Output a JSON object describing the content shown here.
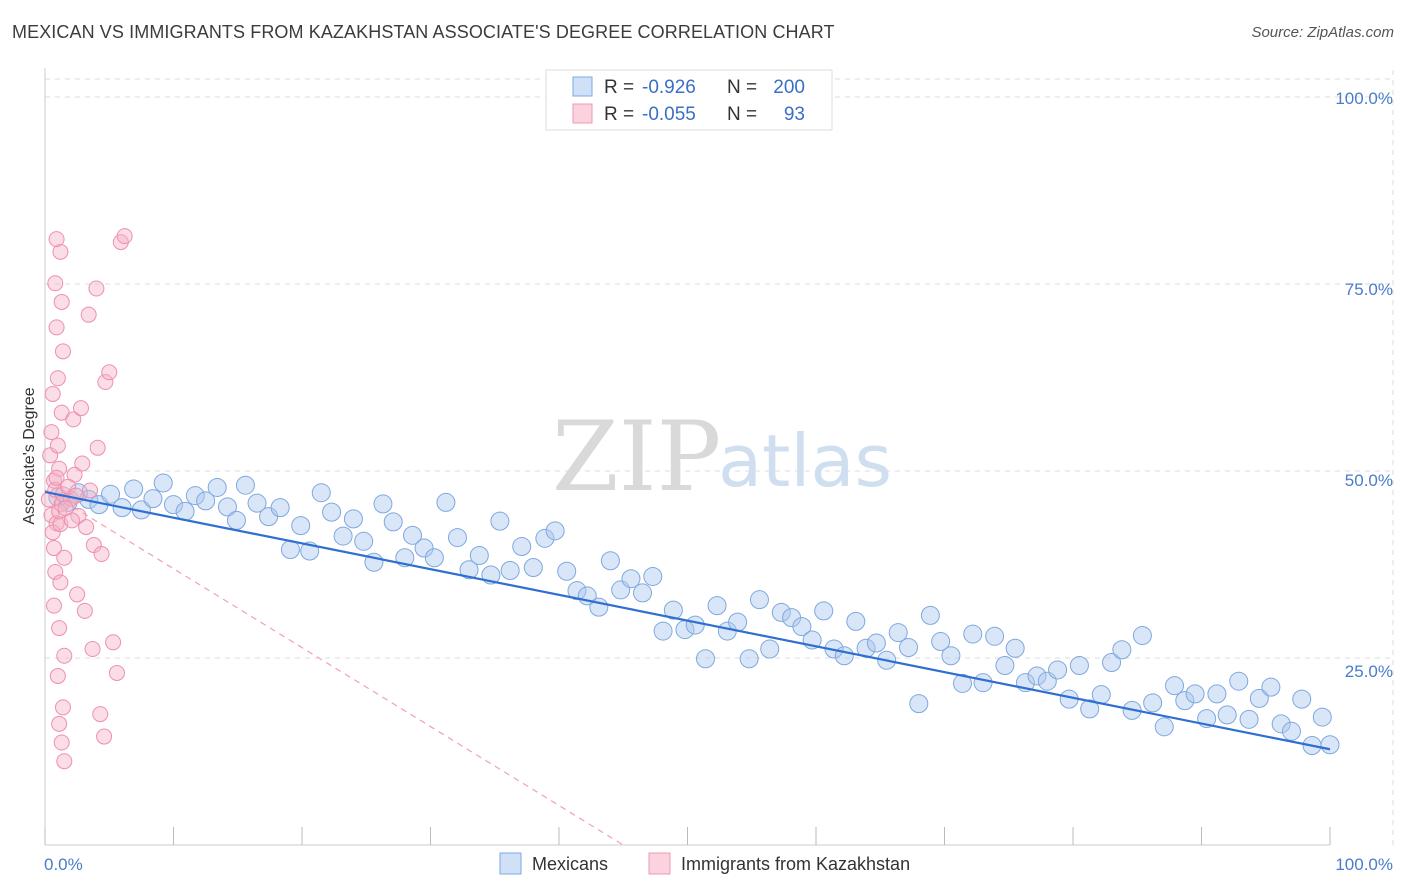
{
  "header": {
    "title": "MEXICAN VS IMMIGRANTS FROM KAZAKHSTAN ASSOCIATE'S DEGREE CORRELATION CHART",
    "source": "Source: ZipAtlas.com"
  },
  "watermark": {
    "zip": "ZIP",
    "atlas": "atlas"
  },
  "stats": [
    {
      "r_label": "R =",
      "r_value": "-0.926",
      "n_label": "N =",
      "n_value": "200",
      "color": "#a9c8f0"
    },
    {
      "r_label": "R =",
      "r_value": "-0.055",
      "n_label": "N =",
      "n_value": "93",
      "color": "#f5b8cb"
    }
  ],
  "chart_data": {
    "type": "scatter",
    "title": "MEXICAN VS IMMIGRANTS FROM KAZAKHSTAN ASSOCIATE'S DEGREE CORRELATION CHART",
    "xlabel": "",
    "ylabel": "Associate's Degree",
    "xlim": [
      0,
      100
    ],
    "ylim": [
      0,
      100
    ],
    "x_tick_labels": [
      "0.0%",
      "100.0%"
    ],
    "y_ticks": [
      25,
      50,
      75,
      100
    ],
    "y_tick_labels": [
      "25.0%",
      "50.0%",
      "75.0%",
      "100.0%"
    ],
    "grid": true,
    "legend_position": "bottom-center",
    "colors": {
      "mexicans": "#5b93e0",
      "kazakhstan": "#f08aa8",
      "trend_blue": "#2e6fd0",
      "trend_pink": "#f0a0b8"
    },
    "series": [
      {
        "name": "Mexicans",
        "trendline": {
          "x": [
            0,
            100
          ],
          "y": [
            47.2,
            12.8
          ],
          "style": "solid"
        },
        "points": [
          [
            1.0,
            46.5
          ],
          [
            1.8,
            45.8
          ],
          [
            2.6,
            47.1
          ],
          [
            3.4,
            46.2
          ],
          [
            4.2,
            45.5
          ],
          [
            5.1,
            46.9
          ],
          [
            6.0,
            45.1
          ],
          [
            6.9,
            47.6
          ],
          [
            7.5,
            44.8
          ],
          [
            8.4,
            46.3
          ],
          [
            9.2,
            48.4
          ],
          [
            10.0,
            45.5
          ],
          [
            10.9,
            44.6
          ],
          [
            11.7,
            46.7
          ],
          [
            12.5,
            46.0
          ],
          [
            13.4,
            47.8
          ],
          [
            14.2,
            45.2
          ],
          [
            14.9,
            43.4
          ],
          [
            15.6,
            48.1
          ],
          [
            16.5,
            45.7
          ],
          [
            17.4,
            43.9
          ],
          [
            18.3,
            45.1
          ],
          [
            19.1,
            39.5
          ],
          [
            19.9,
            42.7
          ],
          [
            20.6,
            39.3
          ],
          [
            21.5,
            47.1
          ],
          [
            22.3,
            44.5
          ],
          [
            23.2,
            41.3
          ],
          [
            24.0,
            43.6
          ],
          [
            24.8,
            40.6
          ],
          [
            25.6,
            37.8
          ],
          [
            26.3,
            45.6
          ],
          [
            27.1,
            43.2
          ],
          [
            28.0,
            38.4
          ],
          [
            28.6,
            41.4
          ],
          [
            29.5,
            39.7
          ],
          [
            30.3,
            38.4
          ],
          [
            31.2,
            45.8
          ],
          [
            32.1,
            41.1
          ],
          [
            33.0,
            36.8
          ],
          [
            33.8,
            38.7
          ],
          [
            34.7,
            36.1
          ],
          [
            35.4,
            43.3
          ],
          [
            36.2,
            36.7
          ],
          [
            37.1,
            39.9
          ],
          [
            38.0,
            37.1
          ],
          [
            38.9,
            41.0
          ],
          [
            39.7,
            42.0
          ],
          [
            40.6,
            36.6
          ],
          [
            41.4,
            34.0
          ],
          [
            42.2,
            33.3
          ],
          [
            43.1,
            31.8
          ],
          [
            44.0,
            38.0
          ],
          [
            44.8,
            34.1
          ],
          [
            45.6,
            35.6
          ],
          [
            46.5,
            33.7
          ],
          [
            47.3,
            35.9
          ],
          [
            48.1,
            28.6
          ],
          [
            48.9,
            31.4
          ],
          [
            49.8,
            28.8
          ],
          [
            50.6,
            29.4
          ],
          [
            51.4,
            24.9
          ],
          [
            52.3,
            32.0
          ],
          [
            53.1,
            28.6
          ],
          [
            53.9,
            29.8
          ],
          [
            54.8,
            24.9
          ],
          [
            55.6,
            32.8
          ],
          [
            56.4,
            26.2
          ],
          [
            57.3,
            31.1
          ],
          [
            58.1,
            30.4
          ],
          [
            58.9,
            29.2
          ],
          [
            59.7,
            27.4
          ],
          [
            60.6,
            31.3
          ],
          [
            61.4,
            26.2
          ],
          [
            62.2,
            25.3
          ],
          [
            63.1,
            29.9
          ],
          [
            63.9,
            26.3
          ],
          [
            64.7,
            27.0
          ],
          [
            65.5,
            24.7
          ],
          [
            66.4,
            28.4
          ],
          [
            67.2,
            26.4
          ],
          [
            68.0,
            18.9
          ],
          [
            68.9,
            30.7
          ],
          [
            69.7,
            27.2
          ],
          [
            70.5,
            25.3
          ],
          [
            71.4,
            21.6
          ],
          [
            72.2,
            28.2
          ],
          [
            73.0,
            21.7
          ],
          [
            73.9,
            27.9
          ],
          [
            74.7,
            24.0
          ],
          [
            75.5,
            26.3
          ],
          [
            76.3,
            21.7
          ],
          [
            77.2,
            22.6
          ],
          [
            78.0,
            21.9
          ],
          [
            78.8,
            23.4
          ],
          [
            79.7,
            19.5
          ],
          [
            80.5,
            24.0
          ],
          [
            81.3,
            18.2
          ],
          [
            82.2,
            20.1
          ],
          [
            83.0,
            24.4
          ],
          [
            83.8,
            26.1
          ],
          [
            84.6,
            18.0
          ],
          [
            85.4,
            28.0
          ],
          [
            86.2,
            19.0
          ],
          [
            87.1,
            15.8
          ],
          [
            87.9,
            21.3
          ],
          [
            88.7,
            19.3
          ],
          [
            89.5,
            20.2
          ],
          [
            90.4,
            16.9
          ],
          [
            91.2,
            20.2
          ],
          [
            92.0,
            17.4
          ],
          [
            92.9,
            21.9
          ],
          [
            93.7,
            16.8
          ],
          [
            94.5,
            19.6
          ],
          [
            95.4,
            21.1
          ],
          [
            96.2,
            16.2
          ],
          [
            97.0,
            15.2
          ],
          [
            97.8,
            19.5
          ],
          [
            98.6,
            13.3
          ],
          [
            99.4,
            17.1
          ],
          [
            100.0,
            13.4
          ]
        ]
      },
      {
        "name": "Immigrants from Kazakhstan",
        "trendline": {
          "x": [
            0,
            45
          ],
          "y": [
            47.5,
            0
          ],
          "style": "dashed"
        },
        "points": [
          [
            0.3,
            46.2
          ],
          [
            0.5,
            44.1
          ],
          [
            0.7,
            48.7
          ],
          [
            0.9,
            43.0
          ],
          [
            1.1,
            50.3
          ],
          [
            1.3,
            45.6
          ],
          [
            0.4,
            52.1
          ],
          [
            0.6,
            41.8
          ],
          [
            0.8,
            47.5
          ],
          [
            1.0,
            53.4
          ],
          [
            1.2,
            42.9
          ],
          [
            1.4,
            46.9
          ],
          [
            0.5,
            55.2
          ],
          [
            0.7,
            39.7
          ],
          [
            0.9,
            49.1
          ],
          [
            1.1,
            44.6
          ],
          [
            1.3,
            57.8
          ],
          [
            1.5,
            38.4
          ],
          [
            0.6,
            60.3
          ],
          [
            0.8,
            36.5
          ],
          [
            1.0,
            62.4
          ],
          [
            1.2,
            35.1
          ],
          [
            1.4,
            66.0
          ],
          [
            0.7,
            32.0
          ],
          [
            0.9,
            69.2
          ],
          [
            1.1,
            29.0
          ],
          [
            1.3,
            72.6
          ],
          [
            1.5,
            25.3
          ],
          [
            0.8,
            75.1
          ],
          [
            1.0,
            22.6
          ],
          [
            1.2,
            79.3
          ],
          [
            1.4,
            18.4
          ],
          [
            0.9,
            81.0
          ],
          [
            1.1,
            16.2
          ],
          [
            1.3,
            13.7
          ],
          [
            1.5,
            11.2
          ],
          [
            2.0,
            46.3
          ],
          [
            2.3,
            49.5
          ],
          [
            2.6,
            44.0
          ],
          [
            2.9,
            51.0
          ],
          [
            3.2,
            42.5
          ],
          [
            3.5,
            47.4
          ],
          [
            3.8,
            40.1
          ],
          [
            4.1,
            53.1
          ],
          [
            4.4,
            38.9
          ],
          [
            4.7,
            61.9
          ],
          [
            5.0,
            63.2
          ],
          [
            5.3,
            27.1
          ],
          [
            5.6,
            23.0
          ],
          [
            5.9,
            80.6
          ],
          [
            6.2,
            81.4
          ],
          [
            2.2,
            56.9
          ],
          [
            2.5,
            33.5
          ],
          [
            2.8,
            58.4
          ],
          [
            3.1,
            31.3
          ],
          [
            3.4,
            70.9
          ],
          [
            3.7,
            26.2
          ],
          [
            4.0,
            74.4
          ],
          [
            4.3,
            17.5
          ],
          [
            4.6,
            14.5
          ],
          [
            1.6,
            45.0
          ],
          [
            1.8,
            47.9
          ],
          [
            2.1,
            43.4
          ],
          [
            2.4,
            46.7
          ]
        ]
      }
    ]
  },
  "legend": {
    "items": [
      {
        "label": "Mexicans",
        "color": "#a9c8f0"
      },
      {
        "label": "Immigrants from Kazakhstan",
        "color": "#f5b8cb"
      }
    ]
  }
}
